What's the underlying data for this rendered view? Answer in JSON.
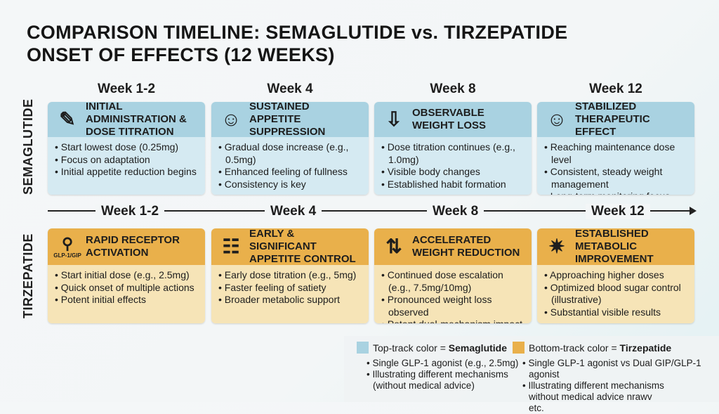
{
  "title": {
    "line1": "COMPARISON TIMELINE: SEMAGLUTIDE vs. TIRZEPATIDE",
    "line2": "ONSET OF EFFECTS (12 WEEKS)"
  },
  "weeks": [
    "Week 1-2",
    "Week 4",
    "Week 8",
    "Week 12"
  ],
  "tracks": [
    {
      "name": "SEMAGLUTIDE",
      "color": "#a9d2e1",
      "cards": [
        {
          "icon": "syringe-pen-icon",
          "title": "Initial Administration & Dose Titration",
          "items": [
            "Start lowest dose (0.25mg)",
            "Focus on adaptation",
            "Initial appetite reduction begins"
          ]
        },
        {
          "icon": "person-stomach-icon",
          "title": "Sustained Appetite Suppression",
          "items": [
            "Gradual dose increase (e.g., 0.5mg)",
            "Enhanced feeling of fullness",
            "Consistency is key"
          ]
        },
        {
          "icon": "person-down-arrow-icon",
          "title": "Observable Weight Loss",
          "items": [
            "Dose titration continues (e.g., 1.0mg)",
            "Visible body changes",
            "Established habit formation"
          ]
        },
        {
          "icon": "smiley-face-icon",
          "title": "Stabilized Therapeutic Effect",
          "items": [
            "Reaching maintenance dose level",
            "Consistent, steady weight management",
            "Long-term monitoring focus"
          ]
        }
      ]
    },
    {
      "name": "TIRZEPATIDE",
      "color": "#e9b04b",
      "cards": [
        {
          "icon": "receptor-icon",
          "icon_label": "GLP-1/GIP",
          "title": "Rapid Receptor Activation",
          "items": [
            "Start initial dose (e.g., 2.5mg)",
            "Quick onset of multiple actions",
            "Potent initial effects"
          ]
        },
        {
          "icon": "group-people-icon",
          "title": "Early & Significant Appetite Control",
          "items": [
            "Early dose titration (e.g., 5mg)",
            "Faster feeling of satiety",
            "Broader metabolic support"
          ]
        },
        {
          "icon": "person-arrows-icon",
          "title": "Accelerated Weight Reduction",
          "items": [
            "Continued dose escalation (e.g., 7.5mg/10mg)",
            "Pronounced weight loss observed",
            "Potent dual-mechanism impact"
          ]
        },
        {
          "icon": "person-burst-icon",
          "title": "Established Metabolic Improvement",
          "items": [
            "Approaching higher doses",
            "Optimized blood sugar control (illustrative)",
            "Substantial visible results"
          ]
        }
      ]
    }
  ],
  "legend": {
    "top": {
      "prefix": "Top-track color = ",
      "drug": "Semaglutide",
      "color": "#a9d2e1",
      "items": [
        "Single GLP-1 agonist (e.g., 2.5mg)",
        "Illustrating different mechanisms (without medical advice)"
      ]
    },
    "bottom": {
      "prefix": "Bottom-track color = ",
      "drug": "Tirzepatide",
      "color": "#e9b04b",
      "items": [
        "Single GLP-1 agonist vs Dual GIP/GLP-1 agonist",
        "Illustrating different mechanisms without medical advice nrawv etc."
      ]
    }
  }
}
